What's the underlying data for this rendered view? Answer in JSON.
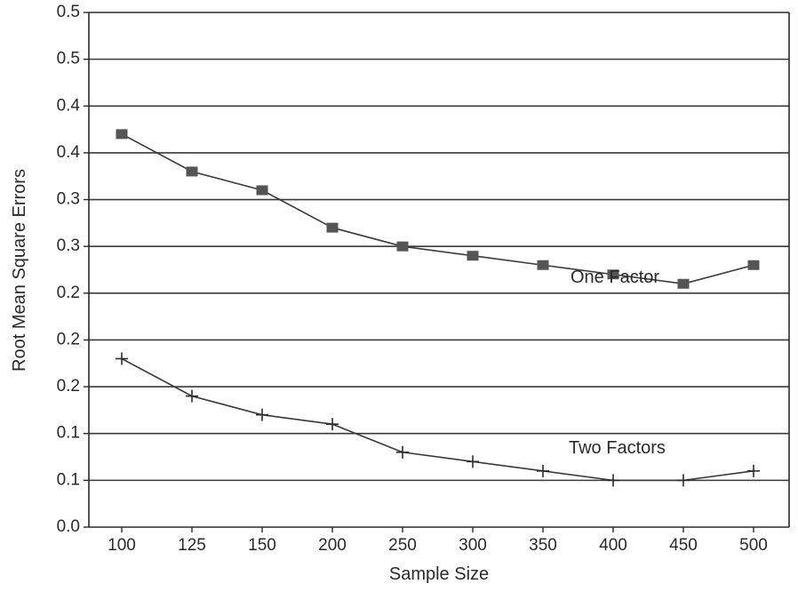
{
  "chart_data": {
    "type": "line",
    "xlabel": "Sample Size",
    "ylabel": "Root Mean Square Errors",
    "categories": [
      "100",
      "125",
      "150",
      "200",
      "250",
      "300",
      "350",
      "400",
      "450",
      "500"
    ],
    "y_tick_labels": [
      "0.0",
      "0.1",
      "0.1",
      "0.2",
      "0.2",
      "0.2",
      "0.3",
      "0.3",
      "0.4",
      "0.4",
      "0.5",
      "0.5"
    ],
    "ylim": [
      0,
      0.55
    ],
    "grid": true,
    "series": [
      {
        "name": "One Factor",
        "marker": "square",
        "values": [
          0.42,
          0.38,
          0.36,
          0.32,
          0.3,
          0.29,
          0.28,
          0.27,
          0.26,
          0.28
        ]
      },
      {
        "name": "Two Factors",
        "marker": "plus",
        "values": [
          0.18,
          0.14,
          0.12,
          0.11,
          0.08,
          0.07,
          0.06,
          0.05,
          0.05,
          0.06
        ]
      }
    ]
  }
}
